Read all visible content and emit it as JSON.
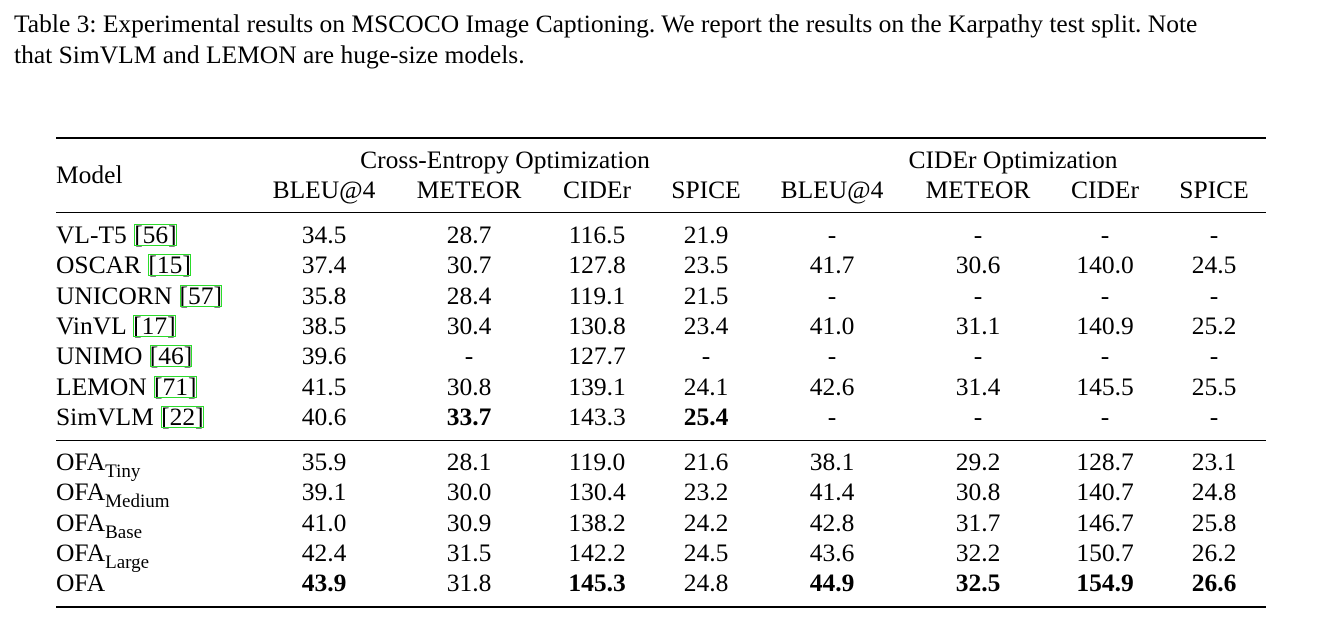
{
  "caption": {
    "line1": "Table 3: Experimental results on MSCOCO Image Captioning. We report the results on the Karpathy test split. Note",
    "line2": "that SimVLM and LEMON are huge-size models."
  },
  "header": {
    "model": "Model",
    "group1": "Cross-Entropy Optimization",
    "group2": "CIDEr Optimization",
    "metrics": [
      "BLEU@4",
      "METEOR",
      "CIDEr",
      "SPICE",
      "BLEU@4",
      "METEOR",
      "CIDEr",
      "SPICE"
    ]
  },
  "rows_top": [
    {
      "name": "VL-T5",
      "ref": "56",
      "values": [
        "34.5",
        "28.7",
        "116.5",
        "21.9",
        "-",
        "-",
        "-",
        "-"
      ],
      "bold": []
    },
    {
      "name": "OSCAR",
      "ref": "15",
      "values": [
        "37.4",
        "30.7",
        "127.8",
        "23.5",
        "41.7",
        "30.6",
        "140.0",
        "24.5"
      ],
      "bold": []
    },
    {
      "name": "UNICORN",
      "ref": "57",
      "values": [
        "35.8",
        "28.4",
        "119.1",
        "21.5",
        "-",
        "-",
        "-",
        "-"
      ],
      "bold": []
    },
    {
      "name": "VinVL",
      "ref": "17",
      "values": [
        "38.5",
        "30.4",
        "130.8",
        "23.4",
        "41.0",
        "31.1",
        "140.9",
        "25.2"
      ],
      "bold": []
    },
    {
      "name": "UNIMO",
      "ref": "46",
      "values": [
        "39.6",
        "-",
        "127.7",
        "-",
        "-",
        "-",
        "-",
        "-"
      ],
      "bold": []
    },
    {
      "name": "LEMON",
      "ref": "71",
      "values": [
        "41.5",
        "30.8",
        "139.1",
        "24.1",
        "42.6",
        "31.4",
        "145.5",
        "25.5"
      ],
      "bold": []
    },
    {
      "name": "SimVLM",
      "ref": "22",
      "values": [
        "40.6",
        "33.7",
        "143.3",
        "25.4",
        "-",
        "-",
        "-",
        "-"
      ],
      "bold": [
        1,
        3
      ]
    }
  ],
  "rows_bottom": [
    {
      "name": "OFA",
      "sub": "Tiny",
      "values": [
        "35.9",
        "28.1",
        "119.0",
        "21.6",
        "38.1",
        "29.2",
        "128.7",
        "23.1"
      ],
      "bold": []
    },
    {
      "name": "OFA",
      "sub": "Medium",
      "values": [
        "39.1",
        "30.0",
        "130.4",
        "23.2",
        "41.4",
        "30.8",
        "140.7",
        "24.8"
      ],
      "bold": []
    },
    {
      "name": "OFA",
      "sub": "Base",
      "values": [
        "41.0",
        "30.9",
        "138.2",
        "24.2",
        "42.8",
        "31.7",
        "146.7",
        "25.8"
      ],
      "bold": []
    },
    {
      "name": "OFA",
      "sub": "Large",
      "values": [
        "42.4",
        "31.5",
        "142.2",
        "24.5",
        "43.6",
        "32.2",
        "150.7",
        "26.2"
      ],
      "bold": []
    },
    {
      "name": "OFA",
      "sub": "",
      "values": [
        "43.9",
        "31.8",
        "145.3",
        "24.8",
        "44.9",
        "32.5",
        "154.9",
        "26.6"
      ],
      "bold": [
        0,
        2,
        4,
        5,
        6,
        7
      ],
      "bold_name": false
    }
  ]
}
